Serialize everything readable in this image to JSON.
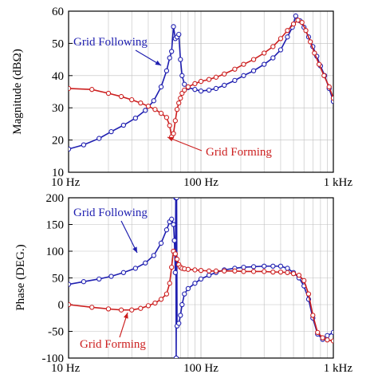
{
  "chart_data": [
    {
      "type": "line",
      "ylabel": "Magnitude (dBΩ)",
      "xscale": "log",
      "xlim": [
        10,
        1000
      ],
      "ylim": [
        10,
        60
      ],
      "yticks": [
        10,
        20,
        30,
        40,
        50,
        60
      ],
      "xtick_labels": [
        {
          "x": 10,
          "label": "10 Hz"
        },
        {
          "x": 100,
          "label": "100 Hz"
        },
        {
          "x": 1000,
          "label": "1 kHz"
        }
      ],
      "grid": true,
      "series": [
        {
          "name": "Grid Following",
          "color": "#1f1fb0",
          "x": [
            10,
            13,
            17,
            21,
            26,
            32,
            38,
            44,
            50,
            55,
            58,
            60,
            62,
            64,
            66,
            68,
            70,
            72,
            75,
            80,
            90,
            100,
            115,
            130,
            150,
            180,
            210,
            250,
            300,
            350,
            400,
            450,
            490,
            520,
            560,
            600,
            650,
            700,
            750,
            800,
            860,
            930,
            1000
          ],
          "y": [
            17.2,
            18.5,
            20.5,
            22.6,
            24.6,
            26.8,
            29.2,
            32.2,
            36.5,
            41.5,
            45.5,
            47.5,
            55.2,
            51.5,
            52,
            52.8,
            45,
            40,
            37.3,
            36.3,
            35.7,
            35.2,
            35.5,
            36,
            37,
            38.5,
            40,
            41.5,
            43.5,
            45.5,
            48,
            52,
            55,
            58.5,
            57,
            55,
            52,
            49,
            46,
            43,
            40,
            36,
            32
          ]
        },
        {
          "name": "Grid Forming",
          "color": "#cc1f1f",
          "x": [
            10,
            15,
            20,
            25,
            30,
            35,
            40,
            45,
            50,
            55,
            58,
            60,
            62,
            64,
            66,
            68,
            70,
            72,
            75,
            80,
            90,
            100,
            115,
            130,
            150,
            180,
            210,
            250,
            300,
            350,
            400,
            450,
            500,
            540,
            580,
            620,
            670,
            720,
            780,
            850,
            930,
            1000
          ],
          "y": [
            36,
            35.7,
            34.5,
            33.5,
            32.5,
            31.5,
            30.5,
            29.5,
            28.3,
            27,
            24.5,
            21,
            22,
            26,
            29.5,
            31.5,
            33,
            34.5,
            35.5,
            36.5,
            37.5,
            38.2,
            38.8,
            39.5,
            40.5,
            42,
            43.5,
            45,
            47,
            49,
            51.5,
            54,
            56,
            57.2,
            56.5,
            54,
            50.5,
            47,
            43.5,
            40,
            36.5,
            33
          ]
        }
      ],
      "annotations": [
        {
          "text": "Grid Following",
          "color": "#1f1fb0",
          "points_to_x": 58,
          "points_to_y": 44
        },
        {
          "text": "Grid Forming",
          "color": "#cc1f1f",
          "points_to_x": 61,
          "points_to_y": 21
        }
      ]
    },
    {
      "type": "line",
      "ylabel": "Phase (DEG.)",
      "xscale": "log",
      "xlim": [
        10,
        1000
      ],
      "ylim": [
        -100,
        200
      ],
      "yticks": [
        -100,
        -50,
        0,
        50,
        100,
        150,
        200
      ],
      "xtick_labels": [
        {
          "x": 10,
          "label": "10 Hz"
        },
        {
          "x": 100,
          "label": "100 Hz"
        },
        {
          "x": 1000,
          "label": "1 kHz"
        }
      ],
      "grid": true,
      "series": [
        {
          "name": "Grid Following",
          "color": "#1f1fb0",
          "x": [
            10,
            13,
            17,
            21,
            26,
            32,
            38,
            44,
            50,
            55,
            58,
            60,
            62,
            63,
            64,
            64.5,
            65,
            65.5,
            66,
            68,
            70,
            72,
            75,
            80,
            90,
            100,
            115,
            130,
            150,
            180,
            210,
            250,
            300,
            350,
            400,
            450,
            500,
            550,
            600,
            650,
            700,
            760,
            830,
            900,
            1000
          ],
          "y": [
            38,
            43,
            48,
            53,
            60,
            68,
            78,
            92,
            115,
            140,
            155,
            160,
            150,
            120,
            60,
            200,
            -100,
            200,
            -40,
            -35,
            -20,
            0,
            20,
            30,
            40,
            48,
            55,
            60,
            65,
            68,
            70,
            71,
            72,
            72,
            72,
            68,
            60,
            50,
            35,
            10,
            -25,
            -55,
            -65,
            -58,
            -52
          ]
        },
        {
          "name": "Grid Forming",
          "color": "#cc1f1f",
          "x": [
            10,
            15,
            20,
            25,
            30,
            35,
            40,
            45,
            50,
            55,
            58,
            60,
            62,
            64,
            66,
            68,
            70,
            72,
            75,
            80,
            90,
            100,
            115,
            130,
            150,
            180,
            210,
            250,
            300,
            350,
            400,
            450,
            500,
            550,
            600,
            650,
            700,
            760,
            830,
            900,
            1000
          ],
          "y": [
            0,
            -5,
            -8,
            -10,
            -10,
            -7,
            -2,
            3,
            10,
            20,
            40,
            70,
            100,
            95,
            85,
            75,
            70,
            68,
            67,
            66,
            65,
            64,
            63,
            63,
            63,
            63,
            62,
            62,
            62,
            61,
            61,
            60,
            58,
            55,
            45,
            20,
            -20,
            -52,
            -62,
            -66,
            -68
          ]
        }
      ],
      "annotations": [
        {
          "text": "Grid Following",
          "color": "#1f1fb0",
          "points_to_x": 50,
          "points_to_y": 118
        },
        {
          "text": "Grid Forming",
          "color": "#cc1f1f",
          "points_to_x": 28,
          "points_to_y": -10
        }
      ]
    }
  ]
}
